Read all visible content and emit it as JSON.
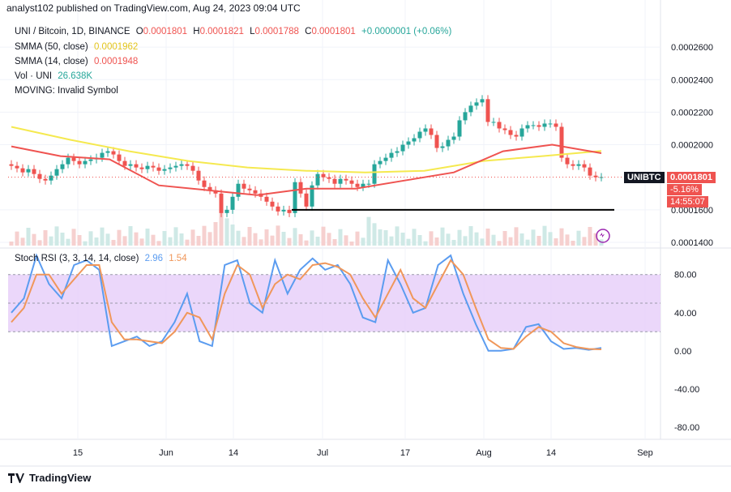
{
  "header": {
    "text": "analyst102 published on TradingView.com, Aug 24, 2023 09:04 UTC"
  },
  "legend": {
    "symbol": "UNI / Bitcoin, 1D, BINANCE",
    "o_label": "O",
    "o_value": "0.0001801",
    "h_label": "H",
    "h_value": "0.0001821",
    "l_label": "L",
    "l_value": "0.0001788",
    "c_label": "C",
    "c_value": "0.0001801",
    "change": "+0.0000001 (+0.06%)",
    "sma50_label": "SMMA (50, close)",
    "sma50_value": "0.0001962",
    "sma14_label": "SMMA (14, close)",
    "sma14_value": "0.0001948",
    "vol_label": "Vol · UNI",
    "vol_value": "26.638K",
    "moving_label": "MOVING: Invalid Symbol"
  },
  "price_tag": {
    "symbol": "UNIBTC",
    "price": "0.0001801",
    "change": "-5.16%",
    "countdown": "14:55:07"
  },
  "stoch_legend": {
    "label": "Stoch RSI (3, 3, 14, 14, close)",
    "k_value": "2.96",
    "d_value": "1.54"
  },
  "footer": {
    "brand": "TradingView"
  },
  "colors": {
    "up": "#26a69a",
    "down": "#ef5350",
    "sma50": "#f5e94f",
    "sma14": "#ef5350",
    "k": "#5b9cf0",
    "d": "#f0975a",
    "band": "#e9d3f9",
    "support": "#000000"
  },
  "chart_data": [
    {
      "type": "candlestick",
      "title": "UNI / Bitcoin, 1D, BINANCE",
      "x_ticks": [
        "15",
        "Jun",
        "14",
        "Jul",
        "17",
        "Aug",
        "14",
        "Sep"
      ],
      "y_ticks": [
        "0.0002600",
        "0.0002400",
        "0.0002200",
        "0.0002000",
        "0.0001600",
        "0.0001400"
      ],
      "ylim": [
        0.000137,
        0.000275
      ],
      "support_level": 0.00016,
      "candles_close": [
        0.000187,
        0.0001855,
        0.000183,
        0.000185,
        0.000182,
        0.000179,
        0.000178,
        0.000181,
        0.000185,
        0.000188,
        0.000192,
        0.00019,
        0.000188,
        0.00019,
        0.000191,
        0.000192,
        0.000195,
        0.000196,
        0.000194,
        0.00019,
        0.000187,
        0.000188,
        0.000186,
        0.000185,
        0.000187,
        0.000186,
        0.000184,
        0.000185,
        0.000186,
        0.000187,
        0.000188,
        0.000187,
        0.000184,
        0.000178,
        0.000174,
        0.000172,
        0.00017,
        0.000158,
        0.00016,
        0.000168,
        0.000176,
        0.000173,
        0.000172,
        0.00017,
        0.000168,
        0.000165,
        0.000162,
        0.000159,
        0.00016,
        0.000158,
        0.000177,
        0.00017,
        0.000162,
        0.000175,
        0.000182,
        0.00018,
        0.000179,
        0.000176,
        0.000179,
        0.000178,
        0.000176,
        0.000174,
        0.000176,
        0.000176,
        0.000188,
        0.00019,
        0.000192,
        0.000195,
        0.000196,
        0.0002,
        0.000202,
        0.000204,
        0.000208,
        0.00021,
        0.000206,
        0.000198,
        0.000199,
        0.000203,
        0.000205,
        0.000215,
        0.00022,
        0.000224,
        0.000226,
        0.000228,
        0.000214,
        0.000214,
        0.00021,
        0.000209,
        0.000206,
        0.000205,
        0.00021,
        0.000212,
        0.000212,
        0.000211,
        0.000213,
        0.000213,
        0.000211,
        0.000192,
        0.000188,
        0.000187,
        0.000188,
        0.000186,
        0.000181,
        0.00018,
        0.0001801
      ],
      "sma50": [
        0.000211,
        0.000203,
        0.000196,
        0.00019,
        0.000186,
        0.000184,
        0.000183,
        0.000184,
        0.00019,
        0.000193,
        0.0001962
      ],
      "sma14": [
        0.000199,
        0.000193,
        0.000191,
        0.000175,
        0.000172,
        0.000169,
        0.000173,
        0.000173,
        0.000178,
        0.000183,
        0.000196,
        0.0002,
        0.0001948
      ],
      "volume_max_k": 120
    },
    {
      "type": "line",
      "title": "Stoch RSI (3, 3, 14, 14, close)",
      "y_ticks": [
        "80.00",
        "40.00",
        "0.00",
        "-40.00",
        "-80.00"
      ],
      "ylim": [
        -92,
        107
      ],
      "band": [
        20,
        80
      ],
      "series": [
        {
          "name": "K",
          "values": [
            40,
            55,
            100,
            70,
            55,
            90,
            95,
            85,
            5,
            10,
            15,
            5,
            10,
            30,
            60,
            10,
            5,
            90,
            95,
            50,
            40,
            95,
            60,
            85,
            97,
            85,
            90,
            70,
            35,
            30,
            95,
            70,
            40,
            45,
            90,
            100,
            60,
            28,
            0,
            0,
            2,
            25,
            28,
            10,
            2,
            3,
            1,
            2.96
          ]
        },
        {
          "name": "D",
          "values": [
            30,
            45,
            80,
            80,
            60,
            75,
            90,
            90,
            30,
            12,
            12,
            10,
            8,
            20,
            40,
            35,
            12,
            60,
            90,
            80,
            45,
            70,
            80,
            75,
            90,
            92,
            88,
            80,
            55,
            35,
            60,
            85,
            55,
            45,
            70,
            95,
            80,
            45,
            12,
            3,
            2,
            15,
            25,
            20,
            8,
            4,
            2,
            1.54
          ]
        }
      ]
    }
  ]
}
